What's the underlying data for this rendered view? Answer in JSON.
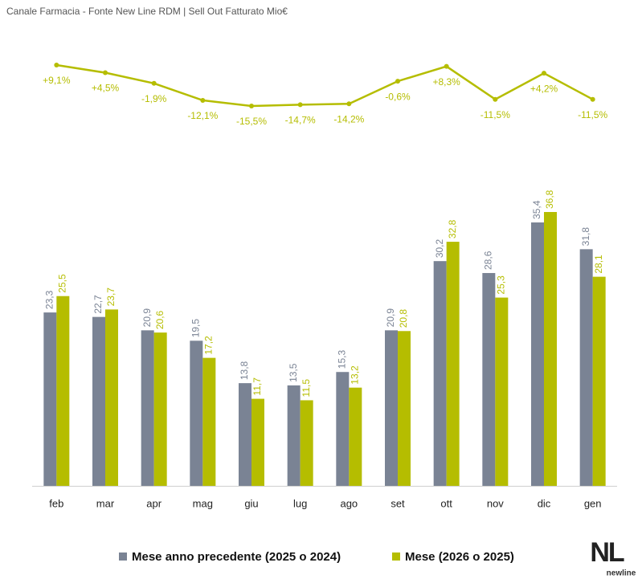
{
  "chart_data": {
    "type": "bar",
    "title": "Canale Farmacia - Fonte New Line RDM | Sell Out Fatturato Mio€",
    "categories": [
      "feb",
      "mar",
      "apr",
      "mag",
      "giu",
      "lug",
      "ago",
      "set",
      "ott",
      "nov",
      "dic",
      "gen"
    ],
    "series": [
      {
        "name": "Mese anno precedente (2025 o 2024)",
        "color": "#7a8394",
        "values": [
          23.3,
          22.7,
          20.9,
          19.5,
          13.8,
          13.5,
          15.3,
          20.9,
          30.2,
          28.6,
          35.4,
          31.8
        ],
        "value_labels": [
          "23,3",
          "22,7",
          "20,9",
          "19,5",
          "13,8",
          "13,5",
          "15,3",
          "20,9",
          "30,2",
          "28,6",
          "35,4",
          "31,8"
        ]
      },
      {
        "name": "Mese (2026 o 2025)",
        "color": "#b5bd00",
        "values": [
          25.5,
          23.7,
          20.6,
          17.2,
          11.7,
          11.5,
          13.2,
          20.8,
          32.8,
          25.3,
          36.8,
          28.1
        ],
        "value_labels": [
          "25,5",
          "23,7",
          "20,6",
          "17,2",
          "11,7",
          "11,5",
          "13,2",
          "20,8",
          "32,8",
          "25,3",
          "36,8",
          "28,1"
        ]
      }
    ],
    "change": {
      "type": "line",
      "color": "#b5bd00",
      "values": [
        9.1,
        4.5,
        -1.9,
        -12.1,
        -15.5,
        -14.7,
        -14.2,
        -0.6,
        8.3,
        -11.5,
        4.2,
        -11.5
      ],
      "value_labels": [
        "+9,1%",
        "+4,5%",
        "-1,9%",
        "-12,1%",
        "-15,5%",
        "-14,7%",
        "-14,2%",
        "-0,6%",
        "+8,3%",
        "-11,5%",
        "+4,2%",
        "-11,5%"
      ]
    }
  },
  "logo": {
    "mark": "NL",
    "text": "newline"
  }
}
